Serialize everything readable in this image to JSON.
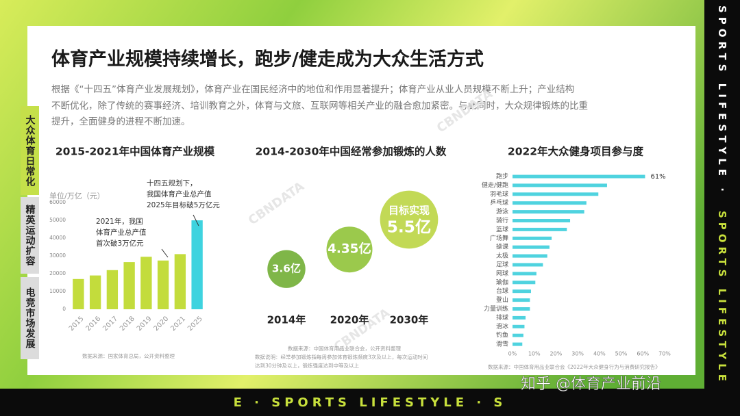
{
  "header": {
    "title": "体育产业规模持续增长，跑步/健走成为大众生活方式",
    "body": [
      "根据《“十四五”体育产业发展规划》，体育产业在国民经济中的地位和作用显著提升；体育产业从业人员规模不断上升；产业结构",
      "不断优化，除了传统的赛事经济、培训教育之外，体育与文旅、互联网等相关产业的融合愈加紧密。与此同时，大众规律锻炼的比重",
      "提升，全面健身的进程不断加速。"
    ]
  },
  "side_tabs": [
    "大众体育日常化",
    "精英运动扩容",
    "电竞市场发展"
  ],
  "right_banner": [
    "SPORTS LIFESTYLE ·",
    "SPORTS LIFESTYLE"
  ],
  "bottom_banner": "E · SPORTS LIFESTYLE · S",
  "watermark": "CBNDATA",
  "credit": "知乎 @体育产业前沿",
  "chart_data": [
    {
      "type": "bar",
      "title": "2015-2021年中国体育产业规模",
      "unit_label": "单位/万亿（元）",
      "categories": [
        "2015",
        "2016",
        "2017",
        "2018",
        "2019",
        "2020",
        "2021",
        "2025"
      ],
      "values": [
        17000,
        19000,
        22000,
        26500,
        29500,
        27400,
        31000,
        50000
      ],
      "colors": [
        "#c3dc3c",
        "#c3dc3c",
        "#c3dc3c",
        "#c3dc3c",
        "#c3dc3c",
        "#c3dc3c",
        "#c3dc3c",
        "#3ed3df"
      ],
      "ylim": [
        0,
        60000
      ],
      "yticks": [
        0,
        10000,
        20000,
        30000,
        40000,
        50000,
        60000
      ],
      "annotations": [
        [
          "2021年，我国",
          "体育产业总产值",
          "首次破3万亿元"
        ],
        [
          "十四五规划下，",
          "我国体育产业总产值",
          "2025年目标破5万亿元"
        ]
      ],
      "source": "数据来源：国家体育总局，公开资料整理"
    },
    {
      "type": "bubble",
      "title": "2014-2030年中国经常参加锻炼的人数",
      "categories": [
        "2014年",
        "2020年",
        "2030年"
      ],
      "values": [
        3.6,
        4.35,
        5.5
      ],
      "value_labels": [
        "3.6亿",
        "4.35亿",
        "5.5亿"
      ],
      "colors": [
        "#7fb648",
        "#9bc94c",
        "#c2d956"
      ],
      "annotation": "目标实现",
      "sources": [
        "数据来源：中国体育用品业联合会，公开资料整理",
        "数据说明：经常参加锻炼指每周参加体育锻炼频度3次及以上，每次运动时间",
        "达到30分钟及以上，锻炼强度达到中等及以上"
      ]
    },
    {
      "type": "hbar",
      "title": "2022年大众健身项目参与度",
      "categories": [
        "跑步",
        "健走/健跑",
        "羽毛球",
        "乒乓球",
        "游泳",
        "骑行",
        "篮球",
        "广场舞",
        "操课",
        "太极",
        "足球",
        "网球",
        "瑜伽",
        "台球",
        "登山",
        "力量训练",
        "排球",
        "滑冰",
        "钓鱼",
        "滑雪"
      ],
      "values": [
        61,
        43.5,
        39.5,
        34,
        33,
        26.5,
        25,
        18,
        17,
        16,
        14,
        11,
        10.5,
        8.5,
        8,
        8,
        6,
        5.5,
        5,
        4.5
      ],
      "value_labels": [
        "61%",
        null,
        null,
        null,
        null,
        null,
        null,
        null,
        null,
        null,
        null,
        null,
        null,
        null,
        null,
        null,
        null,
        null,
        null,
        null
      ],
      "color": "#4fd3df",
      "xlim": [
        0,
        70
      ],
      "xticks": [
        {
          "value": 0,
          "label": "0%"
        },
        {
          "value": 10,
          "label": "10%"
        },
        {
          "value": 20,
          "label": "20%"
        },
        {
          "value": 30,
          "label": "30%"
        },
        {
          "value": 40,
          "label": "40%"
        },
        {
          "value": 50,
          "label": "50%"
        },
        {
          "value": 60,
          "label": "60%"
        },
        {
          "value": 70,
          "label": "70%"
        }
      ],
      "source": "数据来源：中国体育用品业联合会《2022年大众健身行为与消费研究报告》"
    }
  ]
}
